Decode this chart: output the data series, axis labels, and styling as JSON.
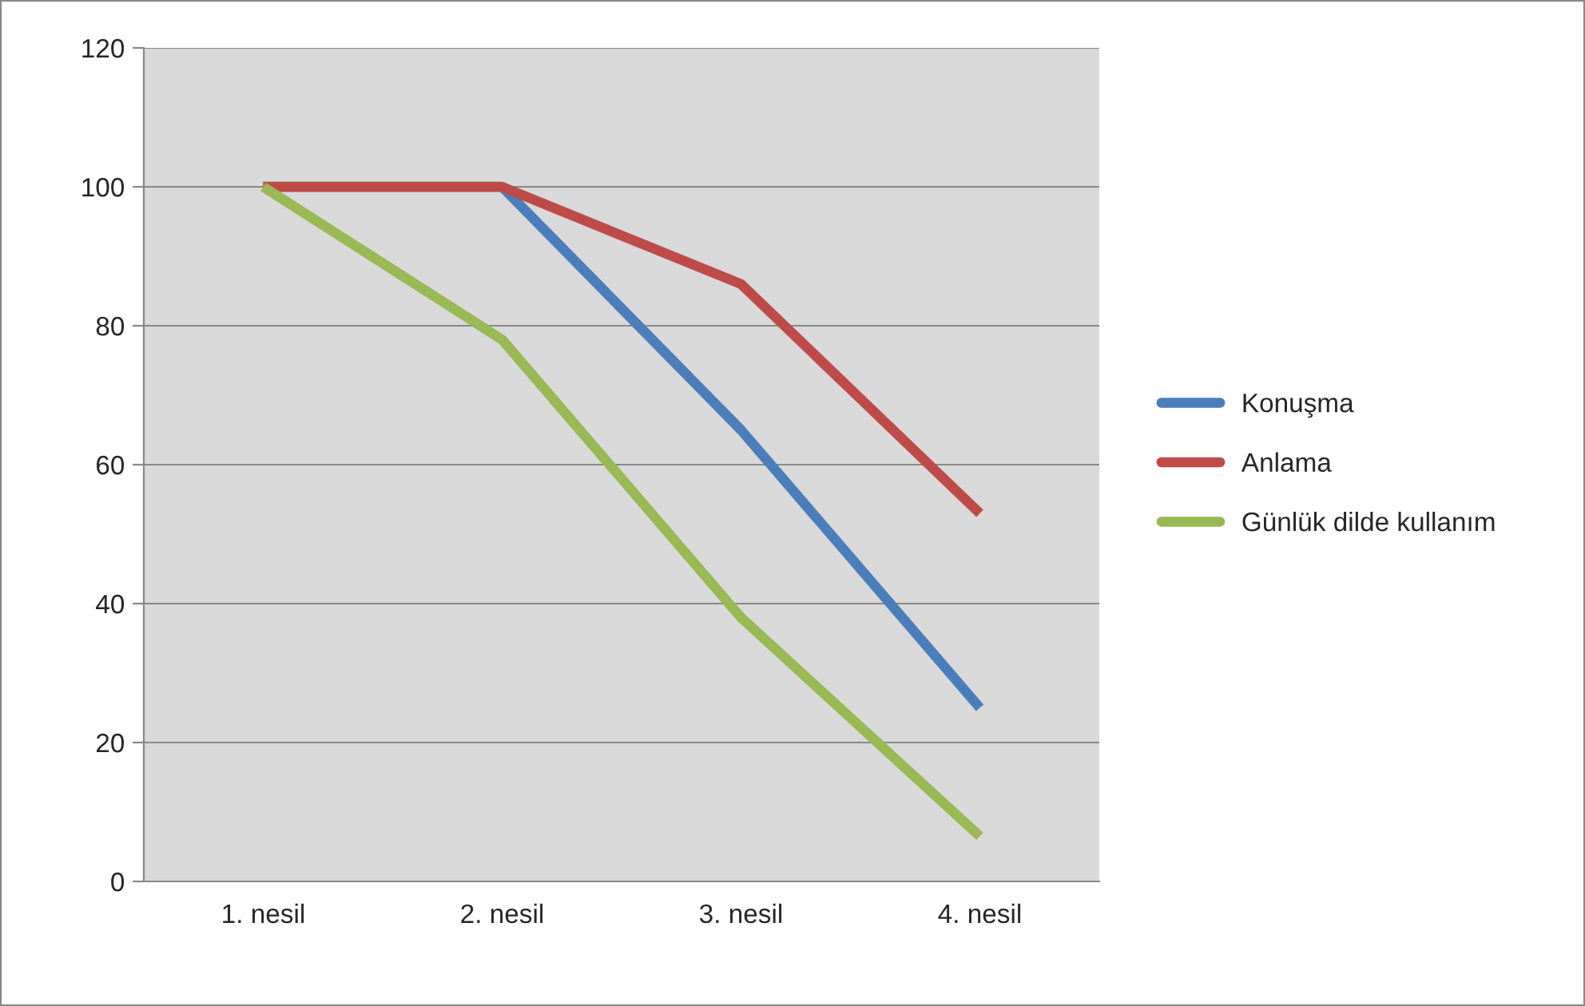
{
  "chart_data": {
    "type": "line",
    "categories": [
      "1. nesil",
      "2. nesil",
      "3. nesil",
      "4. nesil"
    ],
    "series": [
      {
        "name": "Konuşma",
        "color": "#4a7ebb",
        "values": [
          100,
          100,
          65,
          25
        ]
      },
      {
        "name": "Anlama",
        "color": "#be4b48",
        "values": [
          100,
          100,
          86,
          53
        ]
      },
      {
        "name": "Günlük dilde kullanım",
        "color": "#98b954",
        "values": [
          100,
          78,
          38,
          6.5
        ]
      }
    ],
    "ylim": [
      0,
      120
    ],
    "yticks": [
      0,
      20,
      40,
      60,
      80,
      100,
      120
    ],
    "grid": "y",
    "legend": "right",
    "marker": "none",
    "line_style": "solid"
  }
}
